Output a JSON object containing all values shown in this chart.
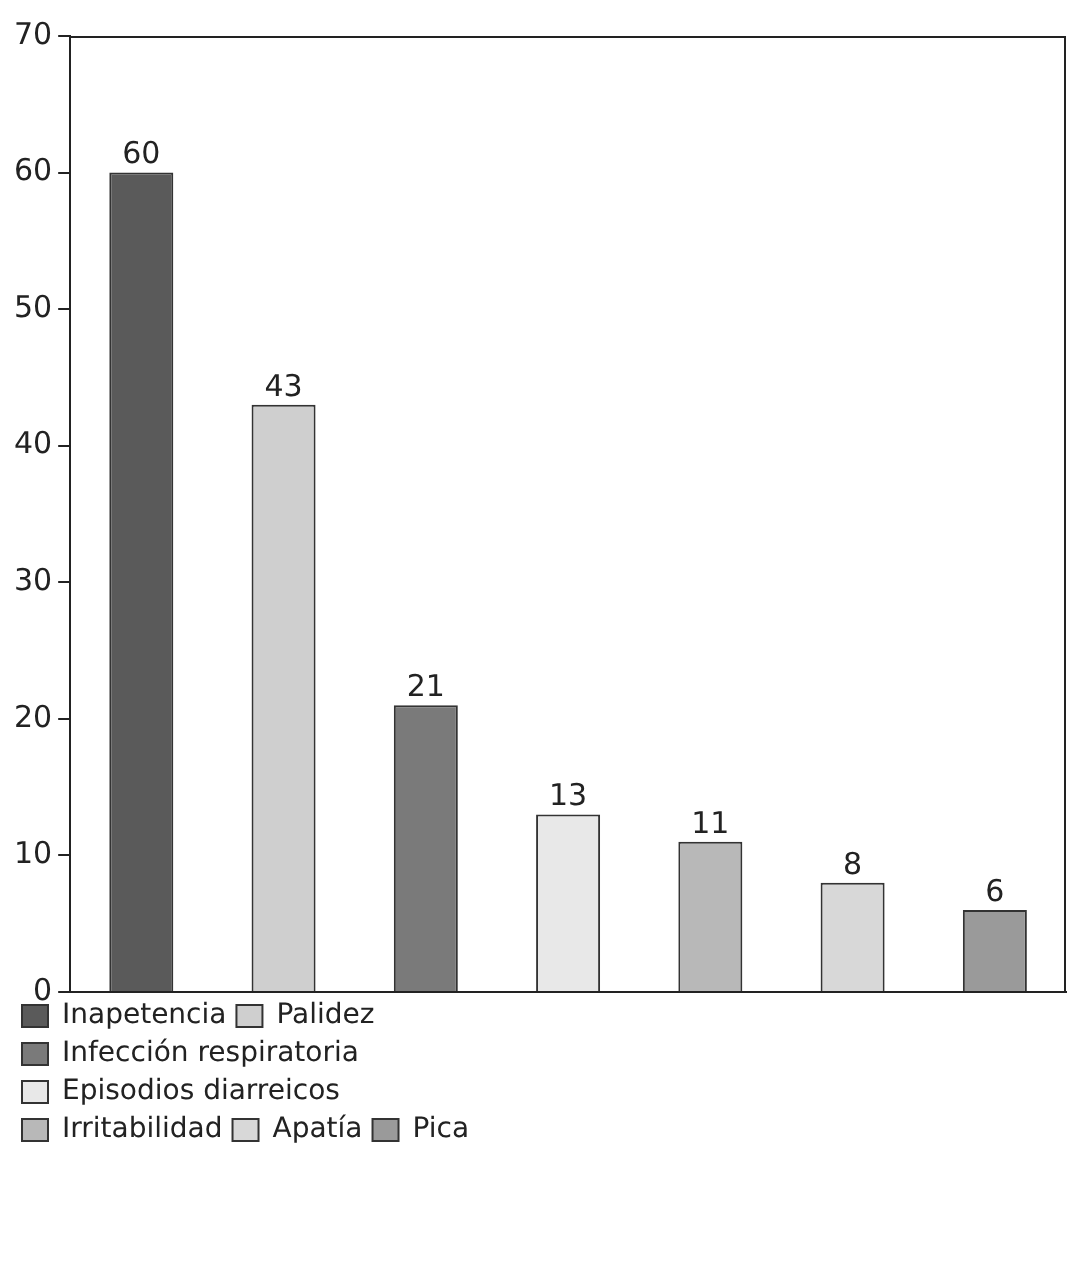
{
  "chart_data": {
    "type": "bar",
    "categories": [
      null,
      null,
      null,
      null,
      null,
      null,
      null
    ],
    "series": [
      {
        "name": "Inapetencia",
        "color": "#5a5a5a",
        "values": [
          60,
          null,
          null,
          null,
          null,
          null,
          null
        ]
      },
      {
        "name": "Palidez",
        "color": "#cfcfcf",
        "values": [
          null,
          43,
          null,
          null,
          null,
          null,
          null
        ]
      },
      {
        "name": "Infección respiratoria",
        "color": "#7a7a7a",
        "values": [
          null,
          null,
          21,
          null,
          null,
          null,
          null
        ]
      },
      {
        "name": "Episodios diarreicos",
        "color": "#e8e8e8",
        "values": [
          null,
          null,
          null,
          13,
          null,
          null,
          null
        ]
      },
      {
        "name": "Irritabilidad",
        "color": "#b8b8b8",
        "values": [
          null,
          null,
          null,
          null,
          11,
          null,
          null
        ]
      },
      {
        "name": "Apatía",
        "color": "#d8d8d8",
        "values": [
          null,
          null,
          null,
          null,
          null,
          8,
          null
        ]
      },
      {
        "name": "Pica",
        "color": "#9a9a9a",
        "values": [
          null,
          null,
          null,
          null,
          null,
          null,
          6
        ]
      }
    ],
    "ylim": [
      0,
      70
    ],
    "yticks": [
      0,
      10,
      20,
      30,
      40,
      50,
      60,
      70
    ],
    "grid": false,
    "data_labels": true,
    "legend": "bottom",
    "tick_labels": "y"
  }
}
